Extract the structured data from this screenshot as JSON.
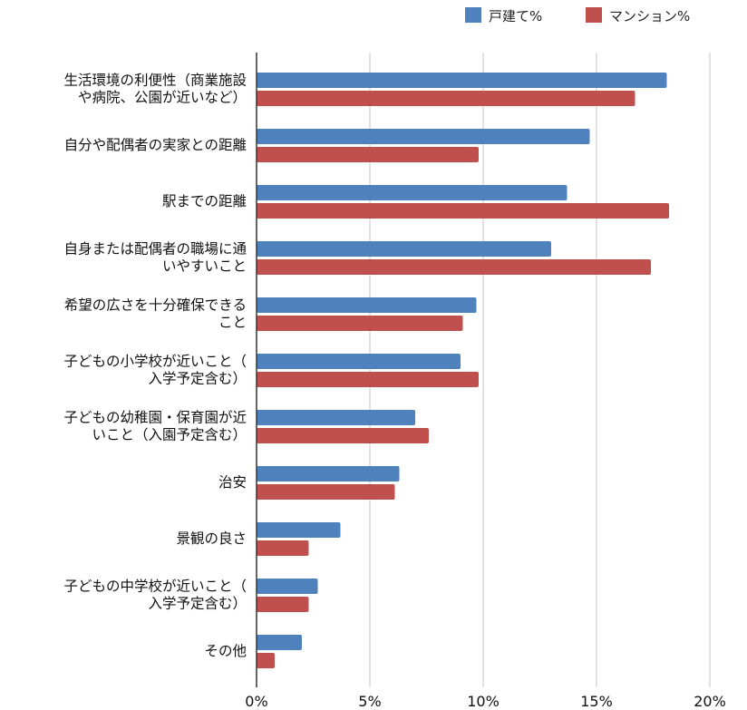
{
  "chart_data": {
    "type": "bar",
    "orientation": "horizontal",
    "title": "",
    "xlabel": "",
    "ylabel": "",
    "xlim": [
      0,
      20
    ],
    "x_ticks": [
      "0%",
      "5%",
      "10%",
      "15%",
      "20%"
    ],
    "grid": true,
    "legend_position": "top-right",
    "categories": [
      [
        "生活環境の利便性（商業施設",
        "や病院、公園が近いなど）"
      ],
      [
        "自分や配偶者の実家との距離"
      ],
      [
        "駅までの距離"
      ],
      [
        "自身または配偶者の職場に通",
        "いやすいこと"
      ],
      [
        "希望の広さを十分確保できる",
        "こと"
      ],
      [
        "子どもの小学校が近いこと（",
        "入学予定含む）"
      ],
      [
        "子どもの幼稚園・保育園が近",
        "いこと（入園予定含む）"
      ],
      [
        "治安"
      ],
      [
        "景観の良さ"
      ],
      [
        "子どもの中学校が近いこと（",
        "入学予定含む）"
      ],
      [
        "その他"
      ]
    ],
    "series": [
      {
        "name": "戸建て%",
        "color": "#4f81bd",
        "values": [
          18.1,
          14.7,
          13.7,
          13.0,
          9.7,
          9.0,
          7.0,
          6.3,
          3.7,
          2.7,
          2.0
        ]
      },
      {
        "name": "マンション%",
        "color": "#c0504d",
        "values": [
          16.7,
          9.8,
          18.2,
          17.4,
          9.1,
          9.8,
          7.6,
          6.1,
          2.3,
          2.3,
          0.8
        ]
      }
    ]
  }
}
